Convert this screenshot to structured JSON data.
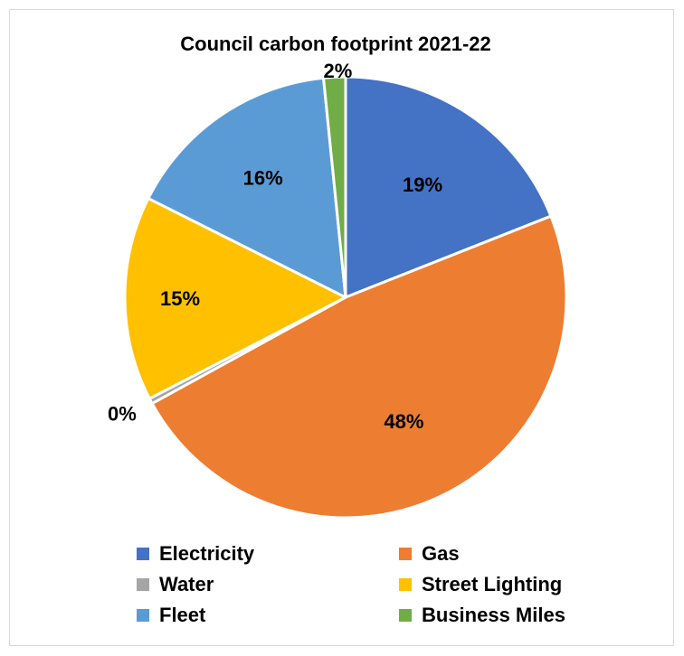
{
  "chart_data": {
    "type": "pie",
    "title": "Council carbon footprint 2021-22",
    "slices": [
      {
        "name": "Electricity",
        "value": 19,
        "label": "19%",
        "color": "#4472C4"
      },
      {
        "name": "Gas",
        "value": 48,
        "label": "48%",
        "color": "#ED7D31"
      },
      {
        "name": "Water",
        "value": 0.4,
        "label": "0%",
        "color": "#A5A5A5"
      },
      {
        "name": "Street Lighting",
        "value": 15,
        "label": "15%",
        "color": "#FFC000"
      },
      {
        "name": "Fleet",
        "value": 16,
        "label": "16%",
        "color": "#5B9BD5"
      },
      {
        "name": "Business Miles",
        "value": 1.6,
        "label": "2%",
        "color": "#70AD47"
      }
    ],
    "legend": {
      "position": "bottom",
      "columns": 2
    }
  }
}
